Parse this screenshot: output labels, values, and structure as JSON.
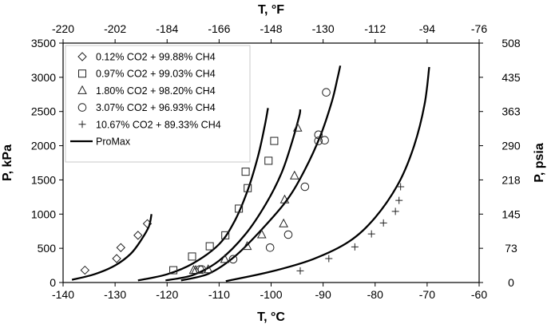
{
  "chart_data": {
    "type": "scatter",
    "title": "",
    "xlabel": "T, °C",
    "ylabel": "P, kPa",
    "x2label": "T, °F",
    "y2label": "P, psia",
    "xlim": [
      -140,
      -60
    ],
    "ylim": [
      0,
      3500
    ],
    "x_ticks": [
      "-140",
      "-130",
      "-120",
      "-110",
      "-100",
      "-90",
      "-80",
      "-70",
      "-60"
    ],
    "y_ticks": [
      "0",
      "500",
      "1000",
      "1500",
      "2000",
      "2500",
      "3000",
      "3500"
    ],
    "x2_ticks": [
      "-220",
      "-202",
      "-184",
      "-166",
      "-148",
      "-130",
      "-112",
      "-94",
      "-76"
    ],
    "y2_ticks": [
      "0",
      "73",
      "145",
      "218",
      "290",
      "363",
      "435",
      "508"
    ],
    "grid": false,
    "legend_position": "top-left",
    "series": [
      {
        "name": "0.12% CO2 + 99.88% CH4",
        "marker": "diamond",
        "points": [
          [
            -135.8,
            180
          ],
          [
            -129.7,
            350
          ],
          [
            -128.9,
            510
          ],
          [
            -125.6,
            690
          ],
          [
            -123.8,
            860
          ]
        ]
      },
      {
        "name": "0.97% CO2 + 99.03% CH4",
        "marker": "square",
        "points": [
          [
            -118.8,
            180
          ],
          [
            -115.2,
            380
          ],
          [
            -111.8,
            530
          ],
          [
            -108.8,
            690
          ],
          [
            -106.2,
            1080
          ],
          [
            -104.5,
            1380
          ],
          [
            -104.9,
            1620
          ],
          [
            -100.5,
            1780
          ],
          [
            -99.4,
            2070
          ]
        ]
      },
      {
        "name": "1.80% CO2 + 98.20% CH4",
        "marker": "triangle",
        "points": [
          [
            -114.9,
            180
          ],
          [
            -114.5,
            180
          ],
          [
            -112.1,
            190
          ],
          [
            -108.9,
            340
          ],
          [
            -104.6,
            530
          ],
          [
            -101.8,
            700
          ],
          [
            -97.6,
            860
          ],
          [
            -97.4,
            1210
          ],
          [
            -95.5,
            1560
          ],
          [
            -94.9,
            2260
          ]
        ]
      },
      {
        "name": " 3.07% CO2 + 96.93% CH4",
        "marker": "circle",
        "points": [
          [
            -113.7,
            190
          ],
          [
            -113.3,
            190
          ],
          [
            -107.3,
            340
          ],
          [
            -100.2,
            510
          ],
          [
            -96.7,
            700
          ],
          [
            -93.5,
            1400
          ],
          [
            -90.9,
            2070
          ],
          [
            -89.7,
            2080
          ],
          [
            -90.9,
            2160
          ],
          [
            -89.4,
            2780
          ]
        ]
      },
      {
        "name": "10.67% CO2 + 89.33% CH4",
        "marker": "plus",
        "points": [
          [
            -94.4,
            170
          ],
          [
            -88.9,
            350
          ],
          [
            -83.9,
            520
          ],
          [
            -80.7,
            710
          ],
          [
            -78.4,
            870
          ],
          [
            -76.1,
            1040
          ],
          [
            -75.4,
            1200
          ],
          [
            -75.1,
            1400
          ]
        ]
      },
      {
        "name": "ProMax",
        "marker": "line",
        "curves": [
          [
            [
              -138.3,
              40
            ],
            [
              -134,
              120
            ],
            [
              -130,
              250
            ],
            [
              -127,
              420
            ],
            [
              -125,
              620
            ],
            [
              -123.5,
              820
            ],
            [
              -123,
              1000
            ]
          ],
          [
            [
              -125.6,
              30
            ],
            [
              -120,
              120
            ],
            [
              -115,
              280
            ],
            [
              -110,
              560
            ],
            [
              -107,
              900
            ],
            [
              -104.5,
              1350
            ],
            [
              -102.5,
              1850
            ],
            [
              -101.2,
              2300
            ],
            [
              -100.6,
              2550
            ]
          ],
          [
            [
              -120.3,
              30
            ],
            [
              -115,
              110
            ],
            [
              -110,
              320
            ],
            [
              -105,
              700
            ],
            [
              -101,
              1150
            ],
            [
              -98,
              1600
            ],
            [
              -96,
              2050
            ],
            [
              -94.6,
              2430
            ],
            [
              -94.4,
              2530
            ]
          ],
          [
            [
              -117.3,
              30
            ],
            [
              -112,
              130
            ],
            [
              -107,
              380
            ],
            [
              -102,
              760
            ],
            [
              -97,
              1200
            ],
            [
              -93.5,
              1650
            ],
            [
              -90.5,
              2150
            ],
            [
              -88.3,
              2650
            ],
            [
              -87.2,
              3000
            ],
            [
              -86.7,
              3170
            ]
          ],
          [
            [
              -108.7,
              20
            ],
            [
              -100,
              160
            ],
            [
              -92,
              340
            ],
            [
              -85,
              600
            ],
            [
              -80,
              950
            ],
            [
              -75.5,
              1450
            ],
            [
              -72.5,
              2000
            ],
            [
              -70.5,
              2600
            ],
            [
              -69.6,
              3150
            ]
          ]
        ]
      }
    ]
  }
}
